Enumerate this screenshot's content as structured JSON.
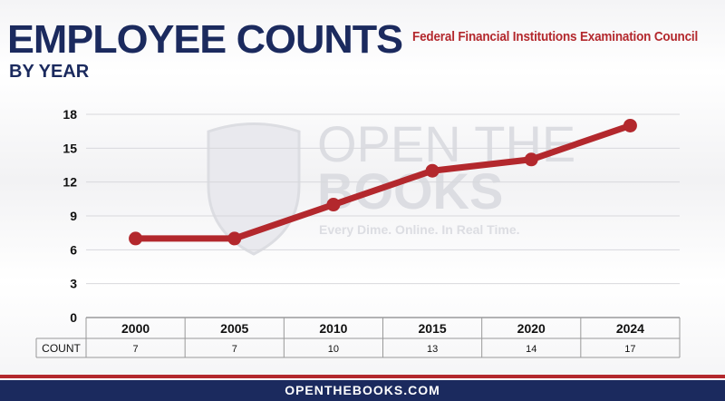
{
  "header": {
    "title": "EMPLOYEE COUNTS",
    "subtitle": "BY YEAR",
    "agency": "Federal Financial Institutions Examination Council"
  },
  "watermark": {
    "line1": "OPEN THE",
    "line2": "BOOKS",
    "tagline": "Every Dime. Online. In Real Time."
  },
  "footer": {
    "url": "OPENTHEBOOKS.COM"
  },
  "colors": {
    "navy": "#1b2a5e",
    "red": "#b3282d",
    "line": "#b3282d"
  },
  "chart_data": {
    "type": "line",
    "categories": [
      "2000",
      "2005",
      "2010",
      "2015",
      "2020",
      "2024"
    ],
    "series": [
      {
        "values": [
          7,
          7,
          10,
          13,
          14,
          17
        ]
      }
    ],
    "ylim": [
      0,
      18
    ],
    "yticks": [
      0,
      3,
      6,
      9,
      12,
      15,
      18
    ],
    "grid": true,
    "table": {
      "row_label": "COUNT",
      "values": [
        "7",
        "7",
        "10",
        "13",
        "14",
        "17"
      ]
    }
  }
}
